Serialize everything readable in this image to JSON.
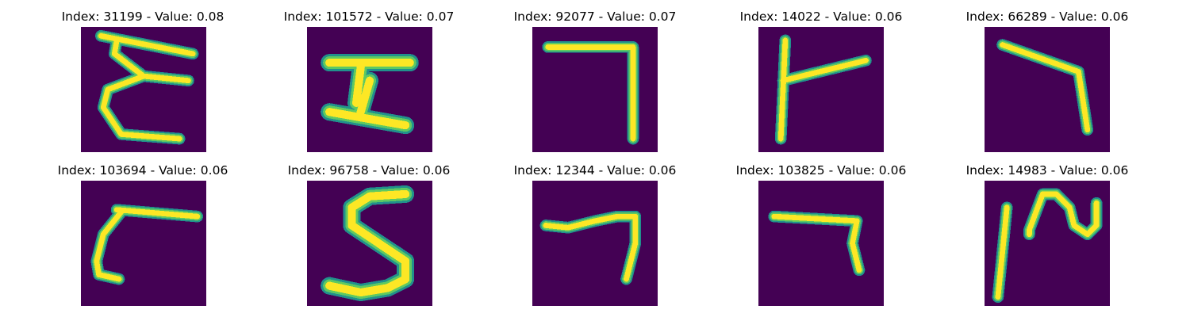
{
  "colors": {
    "background": "#440154",
    "stroke_outer": "#21918c",
    "stroke_mid": "#5ec962",
    "stroke_core": "#fde725"
  },
  "panels": [
    {
      "title": "Index: 31199 - Value: 0.08"
    },
    {
      "title": "Index: 101572 - Value: 0.07"
    },
    {
      "title": "Index: 92077 - Value: 0.07"
    },
    {
      "title": "Index: 14022 - Value: 0.06"
    },
    {
      "title": "Index: 66289 - Value: 0.06"
    },
    {
      "title": "Index: 103694 - Value: 0.06"
    },
    {
      "title": "Index: 96758 - Value: 0.06"
    },
    {
      "title": "Index: 12344 - Value: 0.06"
    },
    {
      "title": "Index: 103825 - Value: 0.06"
    },
    {
      "title": "Index: 14983 - Value: 0.06"
    }
  ]
}
